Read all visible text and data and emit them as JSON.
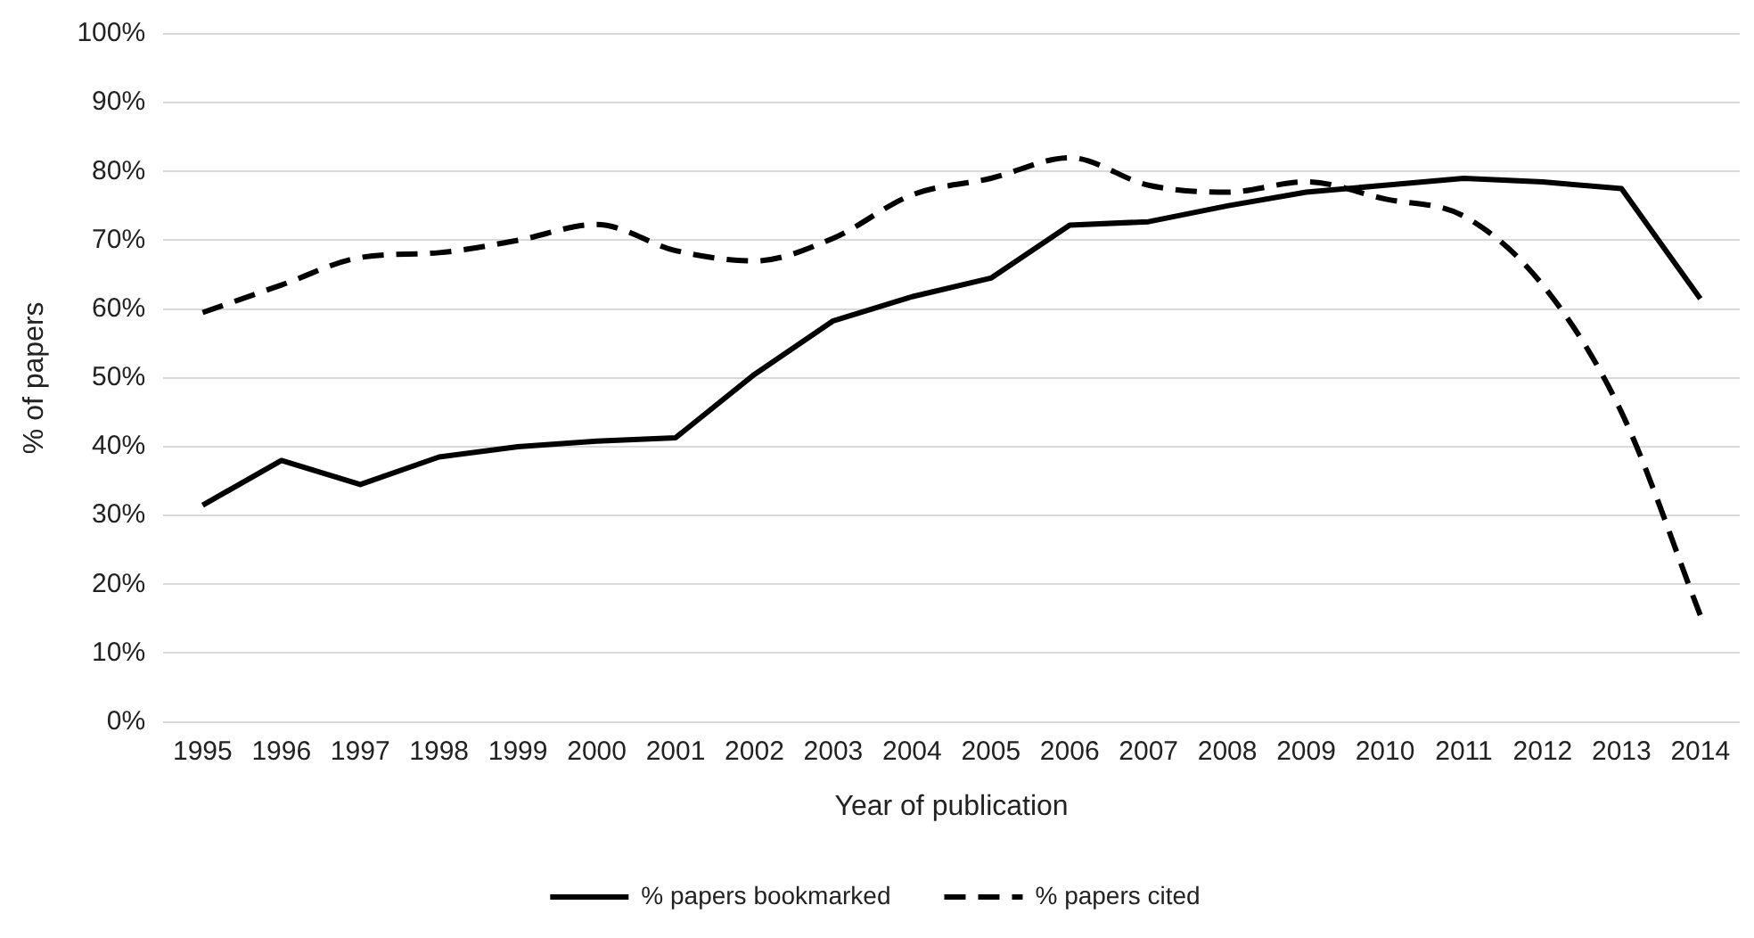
{
  "chart_data": {
    "type": "line",
    "xlabel": "Year of publication",
    "ylabel": "% of papers",
    "categories": [
      "1995",
      "1996",
      "1997",
      "1998",
      "1999",
      "2000",
      "2001",
      "2002",
      "2003",
      "2004",
      "2005",
      "2006",
      "2007",
      "2008",
      "2009",
      "2010",
      "2011",
      "2012",
      "2013",
      "2014"
    ],
    "series": [
      {
        "name": "% papers bookmarked",
        "color": "#000000",
        "line_style": "solid",
        "values": [
          31.5,
          38,
          34.5,
          38.5,
          40,
          40.8,
          41.3,
          50.5,
          58.3,
          61.8,
          64.5,
          72.2,
          72.7,
          75,
          77,
          78,
          79,
          78.5,
          77.5,
          61.5
        ]
      },
      {
        "name": "% papers cited",
        "color": "#000000",
        "line_style": "dashed",
        "values": [
          59.5,
          63.5,
          67.5,
          68.2,
          70,
          72.3,
          68.5,
          67,
          70.3,
          76.6,
          79,
          82,
          78,
          77,
          78.5,
          76,
          73.5,
          63.5,
          45,
          15.5
        ]
      }
    ],
    "ylim": [
      0,
      100
    ],
    "yticks": [
      {
        "value": 0,
        "label": "0%"
      },
      {
        "value": 10,
        "label": "10%"
      },
      {
        "value": 20,
        "label": "20%"
      },
      {
        "value": 30,
        "label": "30%"
      },
      {
        "value": 40,
        "label": "40%"
      },
      {
        "value": 50,
        "label": "50%"
      },
      {
        "value": 60,
        "label": "60%"
      },
      {
        "value": 70,
        "label": "70%"
      },
      {
        "value": 80,
        "label": "80%"
      },
      {
        "value": 90,
        "label": "90%"
      },
      {
        "value": 100,
        "label": "100%"
      }
    ],
    "grid": "y",
    "legend": "bottom",
    "marker": "none"
  }
}
